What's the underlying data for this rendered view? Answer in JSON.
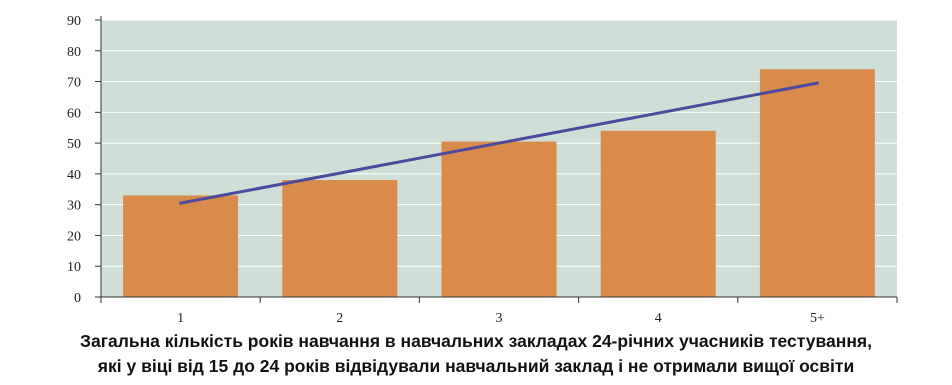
{
  "chart_data": {
    "type": "bar",
    "categories": [
      "1",
      "2",
      "3",
      "4",
      "5+"
    ],
    "values": [
      33,
      38,
      50.5,
      54,
      74
    ],
    "trendline": {
      "start": 30.5,
      "end": 69.5
    },
    "y_ticks": [
      "0",
      "10",
      "20",
      "30",
      "40",
      "50",
      "60",
      "70",
      "80",
      "90"
    ],
    "ylim": [
      0,
      90
    ],
    "xlabel": "",
    "ylabel": "",
    "grid": true,
    "legend": "none",
    "caption_lines": [
      "Загальна кількість років навчання в навчальних закладах 24-річних учасників тестування,",
      "які у віці від 15 до 24 років відвідували навчальний заклад і не отримали вищої освіти"
    ]
  },
  "colors": {
    "plot_background": "#cfdfd7",
    "bar": "#d98b4b",
    "trendline": "#4b4a9e",
    "gridline": "#ffffff",
    "axis": "#333333"
  }
}
